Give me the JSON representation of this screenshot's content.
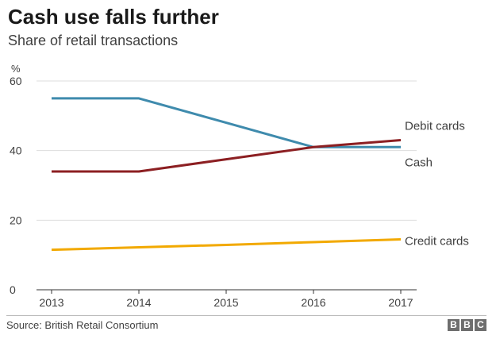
{
  "chart_data": {
    "type": "line",
    "title": "Cash use falls further",
    "subtitle": "Share of retail transactions",
    "ylabel": "%",
    "xlabel": "",
    "x": [
      2013,
      2014,
      2015,
      2016,
      2017
    ],
    "x_tick_labels": [
      "2013",
      "2014",
      "2015",
      "2016",
      "2017"
    ],
    "ylim": [
      0,
      60
    ],
    "y_ticks": [
      0,
      20,
      40,
      60
    ],
    "grid": true,
    "legend": "direct labels at right end of lines",
    "series": [
      {
        "name": "Cash",
        "values": [
          55,
          55,
          48,
          41,
          41
        ],
        "color": "#3f8bad"
      },
      {
        "name": "Debit cards",
        "values": [
          34,
          34,
          37.5,
          41,
          43
        ],
        "color": "#8c1f22"
      },
      {
        "name": "Credit cards",
        "values": [
          11.5,
          12.2,
          12.9,
          13.7,
          14.5
        ],
        "color": "#f2a900"
      }
    ]
  },
  "source": "Source: British Retail Consortium",
  "logo": [
    "B",
    "B",
    "C"
  ]
}
